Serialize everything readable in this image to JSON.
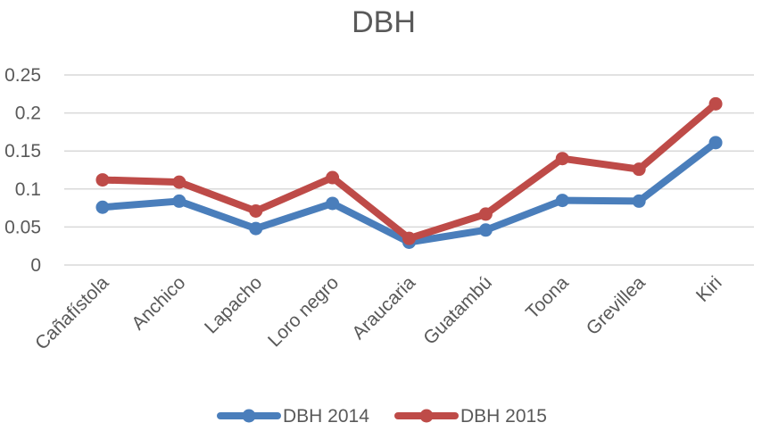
{
  "chart_data": {
    "type": "line",
    "title": "DBH",
    "xlabel": "",
    "ylabel": "",
    "categories": [
      "Cañafístola",
      "Anchico",
      "Lapacho",
      "Loro negro",
      "Araucaria",
      "Guatambú",
      "Toona",
      "Grevillea",
      "Kiri"
    ],
    "ylim": [
      0,
      0.25
    ],
    "yticks": [
      "0",
      "0.05",
      "0.1",
      "0.15",
      "0.2",
      "0.25"
    ],
    "grid": true,
    "legend_position": "bottom",
    "series": [
      {
        "name": "DBH 2014",
        "color": "#4a7ebb",
        "values": [
          0.076,
          0.084,
          0.048,
          0.081,
          0.03,
          0.046,
          0.085,
          0.084,
          0.161
        ]
      },
      {
        "name": "DBH 2015",
        "color": "#be4b48",
        "values": [
          0.112,
          0.109,
          0.071,
          0.115,
          0.035,
          0.067,
          0.14,
          0.126,
          0.212
        ]
      }
    ]
  }
}
